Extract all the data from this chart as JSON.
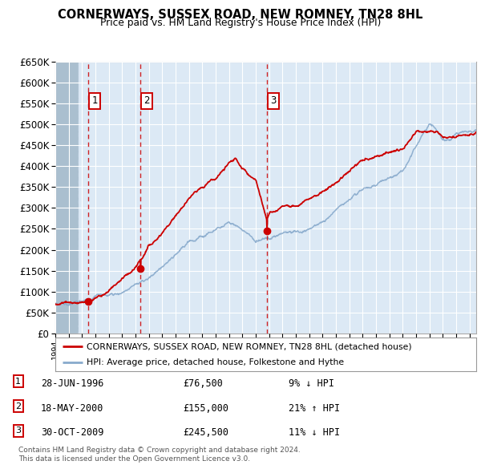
{
  "title": "CORNERWAYS, SUSSEX ROAD, NEW ROMNEY, TN28 8HL",
  "subtitle": "Price paid vs. HM Land Registry's House Price Index (HPI)",
  "plot_bg_color": "#dce9f5",
  "hatch_color": "#c8d8e8",
  "grid_color": "#ffffff",
  "sales": [
    {
      "date": 1996.484,
      "price": 76500,
      "label": "1"
    },
    {
      "date": 2000.378,
      "price": 155000,
      "label": "2"
    },
    {
      "date": 2009.832,
      "price": 245500,
      "label": "3"
    }
  ],
  "sale_info": [
    {
      "label": "1",
      "date": "28-JUN-1996",
      "price": "£76,500",
      "hpi": "9% ↓ HPI"
    },
    {
      "label": "2",
      "date": "18-MAY-2000",
      "price": "£155,000",
      "hpi": "21% ↑ HPI"
    },
    {
      "label": "3",
      "date": "30-OCT-2009",
      "price": "£245,500",
      "hpi": "11% ↓ HPI"
    }
  ],
  "legend_line1": "CORNERWAYS, SUSSEX ROAD, NEW ROMNEY, TN28 8HL (detached house)",
  "legend_line2": "HPI: Average price, detached house, Folkestone and Hythe",
  "footer1": "Contains HM Land Registry data © Crown copyright and database right 2024.",
  "footer2": "This data is licensed under the Open Government Licence v3.0.",
  "red_line_color": "#cc0000",
  "blue_line_color": "#88aacc",
  "sale_dot_color": "#cc0000",
  "vline_color": "#cc0000",
  "xmin": 1994.0,
  "xmax": 2025.5,
  "ymin": 0,
  "ymax": 650000,
  "hpi_key_years": [
    1994,
    1995,
    1996,
    1997,
    1998,
    1999,
    2000,
    2001,
    2002,
    2003,
    2004,
    2005,
    2006,
    2007,
    2008,
    2009,
    2010,
    2011,
    2012,
    2013,
    2014,
    2015,
    2016,
    2017,
    2018,
    2019,
    2020,
    2021,
    2022,
    2022.5,
    2023,
    2023.5,
    2024,
    2025
  ],
  "hpi_key_vals": [
    72000,
    76000,
    81000,
    88000,
    95000,
    107000,
    125000,
    140000,
    165000,
    200000,
    230000,
    248000,
    263000,
    278000,
    268000,
    238000,
    248000,
    258000,
    262000,
    272000,
    295000,
    318000,
    345000,
    375000,
    388000,
    405000,
    415000,
    470000,
    520000,
    510000,
    480000,
    475000,
    488000,
    500000
  ],
  "red_key_years": [
    1994,
    1995,
    1996,
    1996.484,
    1997,
    1998,
    1999,
    2000,
    2000.378,
    2001,
    2002,
    2003,
    2004,
    2005,
    2006,
    2007,
    2007.5,
    2008,
    2009,
    2009.832,
    2010,
    2011,
    2012,
    2013,
    2014,
    2015,
    2016,
    2017,
    2018,
    2019,
    2020,
    2021,
    2022,
    2022.5,
    2023,
    2023.5,
    2024,
    2025
  ],
  "red_key_vals": [
    70000,
    74000,
    78000,
    76500,
    86000,
    98000,
    115000,
    140000,
    155000,
    185000,
    220000,
    263000,
    298000,
    318000,
    340000,
    375000,
    385000,
    358000,
    330000,
    245500,
    255000,
    272000,
    278000,
    295000,
    318000,
    340000,
    365000,
    390000,
    398000,
    415000,
    420000,
    465000,
    470000,
    465000,
    448000,
    450000,
    450000,
    455000
  ]
}
